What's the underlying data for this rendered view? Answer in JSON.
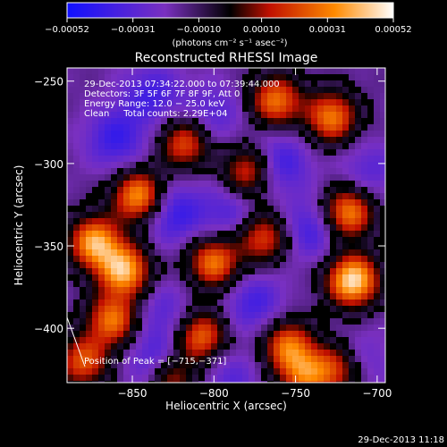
{
  "colorbar": {
    "min": -0.00052,
    "max": 0.00052,
    "tick_labels": [
      "−0.00052",
      "−0.00031",
      "−0.00010",
      "0.00010",
      "0.00031",
      "0.00052"
    ],
    "tick_values": [
      -0.00052,
      -0.00031,
      -0.0001,
      0.0001,
      0.00031,
      0.00052
    ],
    "unit_label": "(photons cm⁻² s⁻¹ asec⁻²)",
    "colors": [
      "#1010ff",
      "#7a30c0",
      "#000000",
      "#c01000",
      "#ff8a00",
      "#ffffff"
    ]
  },
  "chart_data": {
    "type": "heatmap",
    "title": "Reconstructed RHESSI Image",
    "xlabel": "Heliocentric X (arcsec)",
    "ylabel": "Heliocentric Y (arcsec)",
    "xlim": [
      -890,
      -695
    ],
    "ylim": [
      -433,
      -242
    ],
    "x_ticks": [
      -850,
      -800,
      -750,
      -700
    ],
    "x_tick_labels": [
      "−850",
      "−800",
      "−750",
      "−700"
    ],
    "y_ticks": [
      -250,
      -300,
      -350,
      -400
    ],
    "y_tick_labels": [
      "−250",
      "−300",
      "−350",
      "−400"
    ],
    "peak": [
      -715,
      -371
    ],
    "hot_regions": [
      {
        "x": -715,
        "y": -371,
        "intensity": 1.0
      },
      {
        "x": -718,
        "y": -330,
        "intensity": 0.78
      },
      {
        "x": -728,
        "y": -272,
        "intensity": 0.72
      },
      {
        "x": -762,
        "y": -262,
        "intensity": 0.7
      },
      {
        "x": -779,
        "y": -305,
        "intensity": 0.6
      },
      {
        "x": -818,
        "y": -288,
        "intensity": 0.6
      },
      {
        "x": -846,
        "y": -320,
        "intensity": 0.82
      },
      {
        "x": -873,
        "y": -348,
        "intensity": 0.85
      },
      {
        "x": -855,
        "y": -365,
        "intensity": 0.88
      },
      {
        "x": -862,
        "y": -395,
        "intensity": 0.7
      },
      {
        "x": -800,
        "y": -360,
        "intensity": 0.72
      },
      {
        "x": -770,
        "y": -345,
        "intensity": 0.6
      },
      {
        "x": -808,
        "y": -405,
        "intensity": 0.68
      },
      {
        "x": -755,
        "y": -410,
        "intensity": 0.65
      },
      {
        "x": -745,
        "y": -428,
        "intensity": 0.6
      },
      {
        "x": -725,
        "y": -425,
        "intensity": 0.55
      },
      {
        "x": -826,
        "y": -430,
        "intensity": 0.55
      },
      {
        "x": -880,
        "y": -420,
        "intensity": 0.62
      }
    ],
    "cold_regions": [
      {
        "x": -838,
        "y": -258,
        "intensity": 0.7
      },
      {
        "x": -860,
        "y": -285,
        "intensity": 0.8
      },
      {
        "x": -800,
        "y": -270,
        "intensity": 0.55
      },
      {
        "x": -825,
        "y": -330,
        "intensity": 0.85
      },
      {
        "x": -760,
        "y": -300,
        "intensity": 0.8
      },
      {
        "x": -740,
        "y": -340,
        "intensity": 0.75
      },
      {
        "x": -790,
        "y": -330,
        "intensity": 0.6
      },
      {
        "x": -775,
        "y": -385,
        "intensity": 0.7
      },
      {
        "x": -830,
        "y": -390,
        "intensity": 0.5
      },
      {
        "x": -835,
        "y": -420,
        "intensity": 0.8
      },
      {
        "x": -790,
        "y": -430,
        "intensity": 0.5
      },
      {
        "x": -705,
        "y": -305,
        "intensity": 0.5
      },
      {
        "x": -710,
        "y": -420,
        "intensity": 0.45
      }
    ],
    "annotations": [
      "29-Dec-2013 07:34:22.000 to 07:39:44.000",
      "Detectors: 3F 5F 6F 7F 8F 9F, Att 0",
      "Energy Range: 12.0 − 25.0 keV",
      "Clean     Total counts: 2.29E+04"
    ],
    "peak_label": "Position of Peak = [−715,−371]"
  },
  "footer": {
    "timestamp": "29-Dec-2013 11:18"
  }
}
